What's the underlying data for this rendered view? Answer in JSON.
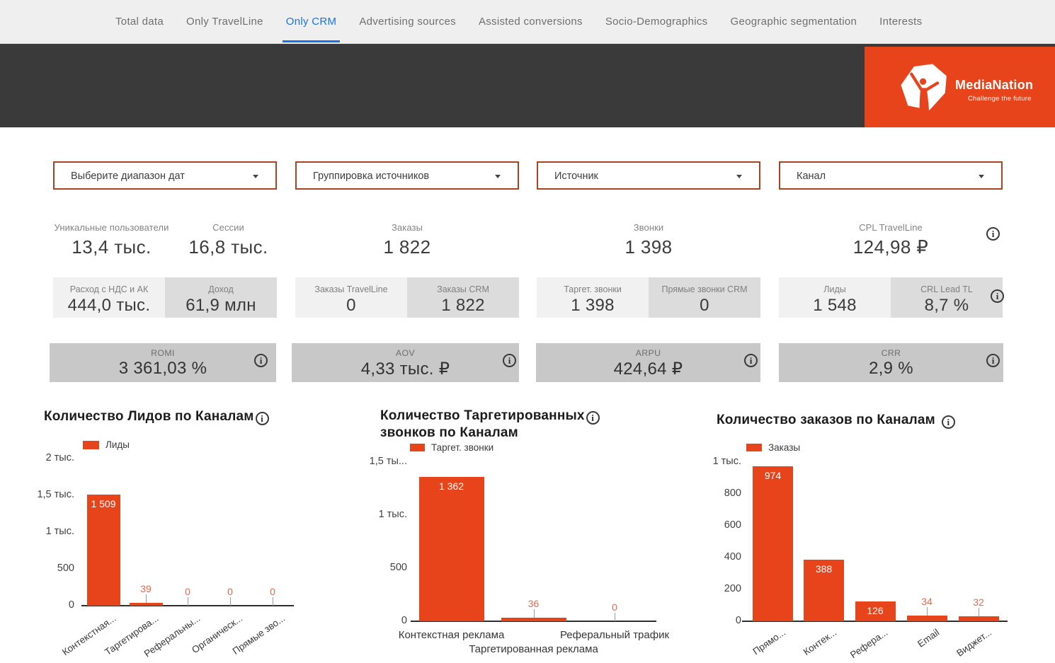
{
  "colors": {
    "accent": "#e8441c",
    "active_tab_blue": "#1a73e8",
    "header_band": "#3a3a3a",
    "annotation_outside": "#e26a52"
  },
  "tabs": [
    "Total data",
    "Only TravelLine",
    "Only CRM",
    "Advertising sources",
    "Assisted conversions",
    "Socio-Demographics",
    "Geographic segmentation",
    "Interests"
  ],
  "active_tab": "Only CRM",
  "logo": {
    "brand": "MediaNation",
    "tagline": "Challenge the future"
  },
  "filters": [
    {
      "label": "Выберите диапазон дат"
    },
    {
      "label": "Группировка источников"
    },
    {
      "label": "Источник"
    },
    {
      "label": "Канал"
    }
  ],
  "kpi_row1": [
    {
      "label": "Уникальные пользователи",
      "value": "13,4 тыс."
    },
    {
      "label": "Сессии",
      "value": "16,8 тыс."
    },
    {
      "label": "Заказы",
      "value": "1 822"
    },
    {
      "label": "Звонки",
      "value": "1 398"
    },
    {
      "label": "CPL TravelLine",
      "value": "124,98 ₽"
    }
  ],
  "kpi_row2": [
    {
      "label": "Расход с НДС и АК",
      "value": "444,0 тыс.",
      "tone": "light"
    },
    {
      "label": "Доход",
      "value": "61,9 млн",
      "tone": "dark"
    },
    {
      "label": "Заказы TravelLine",
      "value": "0",
      "tone": "light"
    },
    {
      "label": "Заказы CRM",
      "value": "1 822",
      "tone": "dark"
    },
    {
      "label": "Таргет. звонки",
      "value": "1 398",
      "tone": "light"
    },
    {
      "label": "Прямые звонки CRM",
      "value": "0",
      "tone": "dark"
    },
    {
      "label": "Лиды",
      "value": "1 548",
      "tone": "light"
    },
    {
      "label": "CRL Lead TL",
      "value": "8,7 %",
      "tone": "dark",
      "has_info": true
    }
  ],
  "kpi_row3": [
    {
      "label": "ROMI",
      "value": "3 361,03 %"
    },
    {
      "label": "AOV",
      "value": "4,33 тыс. ₽"
    },
    {
      "label": "ARPU",
      "value": "424,64 ₽"
    },
    {
      "label": "CRR",
      "value": "2,9 %"
    }
  ],
  "chart_data": [
    {
      "type": "bar",
      "title": "Количество Лидов по Каналам",
      "title_lines": [
        "Количество Лидов по Каналам"
      ],
      "legend": "Лиды",
      "categories": [
        "Контекстная...",
        "Таргетирова...",
        "Реферальны...",
        "Органическ...",
        "Прямые зво..."
      ],
      "values": [
        1509,
        39,
        0,
        0,
        0
      ],
      "value_labels": [
        "1 509",
        "39",
        "0",
        "0",
        "0"
      ],
      "ylim": [
        0,
        2000
      ],
      "yticks": [
        {
          "label": "2 тыс.",
          "value": 2000
        },
        {
          "label": "1,5 тыс.",
          "value": 1500
        },
        {
          "label": "1 тыс.",
          "value": 1000
        },
        {
          "label": "500",
          "value": 500
        },
        {
          "label": "0",
          "value": 0
        }
      ]
    },
    {
      "type": "bar",
      "title": "Количество Таргетированных звонков по Каналам",
      "title_lines": [
        "Количество Таргетированных",
        "звонков по Каналам"
      ],
      "legend": "Таргет. звонки",
      "categories": [
        "Контекстная реклама",
        "Таргетированная реклама",
        "Реферальный трафик"
      ],
      "values": [
        1362,
        36,
        0
      ],
      "value_labels": [
        "1 362",
        "36",
        "0"
      ],
      "ylim": [
        0,
        1530
      ],
      "yticks": [
        {
          "label": "1,5 ты...",
          "value": 1500
        },
        {
          "label": "1 тыс.",
          "value": 1000
        },
        {
          "label": "500",
          "value": 500
        },
        {
          "label": "0",
          "value": 0
        }
      ]
    },
    {
      "type": "bar",
      "title": "Количество заказов по Каналам",
      "title_lines": [
        "Количество заказов по Каналам"
      ],
      "legend": "Заказы",
      "categories": [
        "Прямо...",
        "Контек...",
        "Рефера...",
        "Email",
        "Виджет..."
      ],
      "values": [
        974,
        388,
        126,
        34,
        32
      ],
      "value_labels": [
        "974",
        "388",
        "126",
        "34",
        "32"
      ],
      "ylim": [
        0,
        1070
      ],
      "yticks": [
        {
          "label": "1 тыс.",
          "value": 1000
        },
        {
          "label": "800",
          "value": 800
        },
        {
          "label": "600",
          "value": 600
        },
        {
          "label": "400",
          "value": 400
        },
        {
          "label": "200",
          "value": 200
        },
        {
          "label": "0",
          "value": 0
        }
      ]
    }
  ]
}
